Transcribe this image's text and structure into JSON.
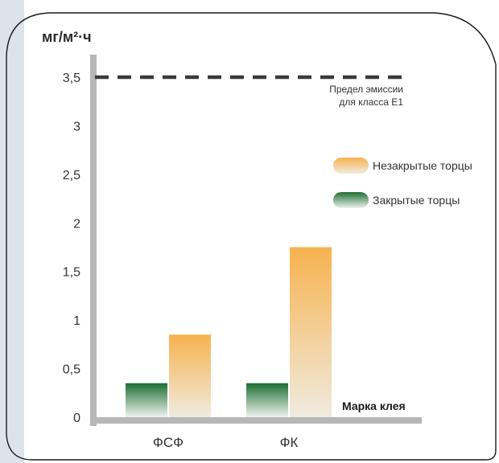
{
  "colors": {
    "axis": "#b7b7b7",
    "limit_line": "#3a3a3a",
    "open_top": "#f7b24e",
    "open_bottom": "#f0ebe0",
    "closed_top": "#1e6e34",
    "closed_bottom": "#eef4ee",
    "frame": "#1a1a1a",
    "backdrop": "#dde3ea"
  },
  "chart_data": {
    "type": "bar",
    "ylabel": "мг/м²·ч",
    "xlabel": "Марка клея",
    "categories": [
      "ФСФ",
      "ФК"
    ],
    "series": [
      {
        "name": "Закрытые торцы",
        "values": [
          0.35,
          0.35
        ],
        "color_key": "closed"
      },
      {
        "name": "Незакрытые торцы",
        "values": [
          0.85,
          1.75
        ],
        "color_key": "open"
      }
    ],
    "yticks": [
      "0",
      "0,5",
      "1",
      "1,5",
      "2",
      "2,5",
      "3",
      "3,5"
    ],
    "ytick_values": [
      0,
      0.5,
      1,
      1.5,
      2,
      2.5,
      3,
      3.5
    ],
    "ylim": [
      0,
      3.6
    ],
    "limit": {
      "value": 3.5,
      "label_line1": "Предел эмиссии",
      "label_line2": "для класса Е1"
    },
    "legend": [
      {
        "label": "Незакрытые торцы",
        "color_key": "open"
      },
      {
        "label": "Закрытые торцы",
        "color_key": "closed"
      }
    ],
    "legend_position": "right",
    "grid": false
  }
}
